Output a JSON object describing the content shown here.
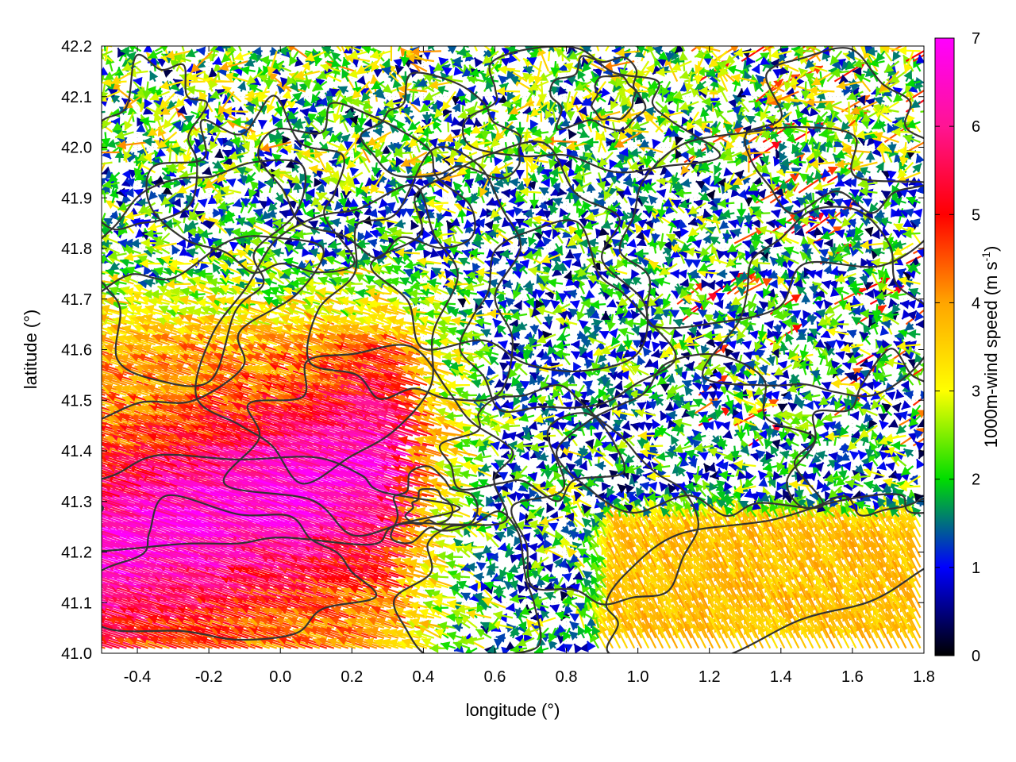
{
  "chart_data": {
    "type": "vector-field",
    "xlabel": "longitude (°)",
    "ylabel": "latitude (°)",
    "colorbar_label": "1000m-wind speed (m s",
    "colorbar_label_sup": "-1",
    "colorbar_label_close": ")",
    "xlim": [
      -0.5,
      1.8
    ],
    "ylim": [
      41.0,
      42.2
    ],
    "color_range": [
      0,
      7
    ],
    "x_ticks": [
      "-0.4",
      "-0.2",
      "0.0",
      "0.2",
      "0.4",
      "0.6",
      "0.8",
      "1.0",
      "1.2",
      "1.4",
      "1.6",
      "1.8"
    ],
    "x_tick_values": [
      -0.4,
      -0.2,
      0.0,
      0.2,
      0.4,
      0.6,
      0.8,
      1.0,
      1.2,
      1.4,
      1.6,
      1.8
    ],
    "y_ticks": [
      "41.0",
      "41.1",
      "41.2",
      "41.3",
      "41.4",
      "41.5",
      "41.6",
      "41.7",
      "41.8",
      "41.9",
      "42.0",
      "42.1",
      "42.2"
    ],
    "y_tick_values": [
      41.0,
      41.1,
      41.2,
      41.3,
      41.4,
      41.5,
      41.6,
      41.7,
      41.8,
      41.9,
      42.0,
      42.1,
      42.2
    ],
    "colorbar_ticks": [
      "0",
      "1",
      "2",
      "3",
      "4",
      "5",
      "6",
      "7"
    ],
    "colorbar_tick_values": [
      0,
      1,
      2,
      3,
      4,
      5,
      6,
      7
    ],
    "palette": [
      "#000000",
      "#0000ff",
      "#00dd00",
      "#ffff00",
      "#ffa500",
      "#ff0000",
      "#ff00ff"
    ],
    "grid": true,
    "contour_color": "#333333",
    "arrow_grid_spacing": [
      0.02,
      0.02
    ],
    "regimes": [
      {
        "region": "west-southwest, lon -0.5 to 0.6, lat 41.0 to 41.8",
        "direction": "from east-southeast",
        "speed": "4-7 m/s"
      },
      {
        "region": "southeast, lon 0.8 to 1.8, lat 41.0 to 41.3",
        "direction": "from south-southeast",
        "speed": "3-4 m/s"
      },
      {
        "region": "north and east, lon 0.6 to 1.8, lat 41.3 to 42.2",
        "direction": "variable",
        "speed": "0-3 m/s"
      }
    ]
  }
}
